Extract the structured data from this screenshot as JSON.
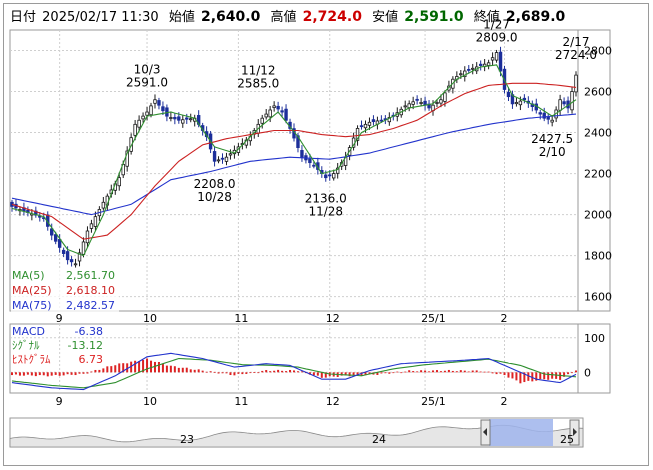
{
  "header": {
    "date_label": "日付",
    "date_value": "2025/02/17 11:30",
    "open_label": "始値",
    "open_value": "2,640.0",
    "high_label": "高値",
    "high_value": "2,724.0",
    "low_label": "安値",
    "low_value": "2,591.0",
    "close_label": "終値",
    "close_value": "2,689.0"
  },
  "colors": {
    "up": "#1a1a1a",
    "down": "#1c2f9a",
    "ma5": "#2f8f2f",
    "ma25": "#cc2222",
    "ma75": "#2233cc",
    "high_value": "#cc0000",
    "low_value": "#006600",
    "macd": "#2233cc",
    "signal": "#2f8f2f",
    "histogram": "#dd2222"
  },
  "legend": [
    {
      "label": "MA(5)",
      "value": "2,561.70",
      "color": "#2f8f2f"
    },
    {
      "label": "MA(25)",
      "value": "2,618.10",
      "color": "#cc2222"
    },
    {
      "label": "MA(75)",
      "value": "2,482.57",
      "color": "#2233cc"
    }
  ],
  "macd_legend": [
    {
      "label": "MACD",
      "value": "-6.38",
      "color": "#2233cc"
    },
    {
      "label": "ｼｸﾞﾅﾙ",
      "value": "-13.12",
      "color": "#2f8f2f"
    },
    {
      "label": "ﾋｽﾄｸﾞﾗﾑ",
      "value": "6.73",
      "color": "#dd2222"
    }
  ],
  "chart_data": [
    {
      "type": "candlestick",
      "y_ticks": [
        1600,
        1800,
        2000,
        2200,
        2400,
        2600,
        2800
      ],
      "ylim": [
        1530,
        2900
      ],
      "x_ticks": [
        "9",
        "10",
        "11",
        "12",
        "25/1",
        "2"
      ],
      "annotations": [
        {
          "date": "10/3",
          "value": "2591.0",
          "position": "above"
        },
        {
          "date": "10/28",
          "value": "2208.0",
          "position": "below"
        },
        {
          "date": "11/12",
          "value": "2585.0",
          "position": "above"
        },
        {
          "date": "11/28",
          "value": "2136.0",
          "position": "below"
        },
        {
          "date": "1/27",
          "value": "2809.0",
          "position": "above"
        },
        {
          "date": "2/10",
          "value": "2427.5",
          "position": "below"
        },
        {
          "date": "2/17",
          "value": "2724.0",
          "position": "above"
        }
      ],
      "close_anchors": [
        [
          0,
          2040
        ],
        [
          4,
          2010
        ],
        [
          8,
          1985
        ],
        [
          10,
          1900
        ],
        [
          14,
          1780
        ],
        [
          16,
          1760
        ],
        [
          19,
          1920
        ],
        [
          23,
          2060
        ],
        [
          27,
          2180
        ],
        [
          31,
          2440
        ],
        [
          34,
          2500
        ],
        [
          36,
          2560
        ],
        [
          39,
          2480
        ],
        [
          42,
          2460
        ],
        [
          46,
          2470
        ],
        [
          49,
          2380
        ],
        [
          51,
          2260
        ],
        [
          54,
          2280
        ],
        [
          57,
          2330
        ],
        [
          60,
          2380
        ],
        [
          63,
          2470
        ],
        [
          66,
          2530
        ],
        [
          68,
          2500
        ],
        [
          70,
          2420
        ],
        [
          73,
          2280
        ],
        [
          76,
          2240
        ],
        [
          79,
          2180
        ],
        [
          81,
          2200
        ],
        [
          84,
          2280
        ],
        [
          87,
          2420
        ],
        [
          90,
          2450
        ],
        [
          93,
          2460
        ],
        [
          96,
          2480
        ],
        [
          99,
          2530
        ],
        [
          102,
          2560
        ],
        [
          105,
          2520
        ],
        [
          108,
          2560
        ],
        [
          111,
          2660
        ],
        [
          114,
          2700
        ],
        [
          117,
          2720
        ],
        [
          120,
          2740
        ],
        [
          122,
          2790
        ],
        [
          124,
          2610
        ],
        [
          126,
          2540
        ],
        [
          129,
          2560
        ],
        [
          132,
          2510
        ],
        [
          134,
          2470
        ],
        [
          136,
          2460
        ],
        [
          138,
          2560
        ],
        [
          140,
          2520
        ],
        [
          142,
          2680
        ]
      ],
      "ma5": [
        [
          0,
          2030
        ],
        [
          8,
          1990
        ],
        [
          14,
          1830
        ],
        [
          18,
          1800
        ],
        [
          23,
          2000
        ],
        [
          29,
          2300
        ],
        [
          34,
          2480
        ],
        [
          40,
          2500
        ],
        [
          46,
          2470
        ],
        [
          51,
          2330
        ],
        [
          56,
          2300
        ],
        [
          62,
          2420
        ],
        [
          67,
          2500
        ],
        [
          72,
          2380
        ],
        [
          78,
          2200
        ],
        [
          82,
          2220
        ],
        [
          88,
          2400
        ],
        [
          94,
          2460
        ],
        [
          100,
          2520
        ],
        [
          106,
          2540
        ],
        [
          112,
          2660
        ],
        [
          118,
          2720
        ],
        [
          122,
          2730
        ],
        [
          126,
          2580
        ],
        [
          132,
          2530
        ],
        [
          136,
          2480
        ],
        [
          142,
          2560
        ]
      ],
      "ma25": [
        [
          0,
          2050
        ],
        [
          10,
          1990
        ],
        [
          18,
          1880
        ],
        [
          24,
          1900
        ],
        [
          30,
          2000
        ],
        [
          36,
          2140
        ],
        [
          42,
          2260
        ],
        [
          48,
          2340
        ],
        [
          54,
          2370
        ],
        [
          60,
          2390
        ],
        [
          66,
          2410
        ],
        [
          72,
          2410
        ],
        [
          78,
          2390
        ],
        [
          84,
          2380
        ],
        [
          90,
          2390
        ],
        [
          96,
          2420
        ],
        [
          102,
          2460
        ],
        [
          108,
          2530
        ],
        [
          114,
          2590
        ],
        [
          120,
          2630
        ],
        [
          126,
          2640
        ],
        [
          132,
          2640
        ],
        [
          138,
          2630
        ],
        [
          142,
          2620
        ]
      ],
      "ma75": [
        [
          0,
          2080
        ],
        [
          10,
          2040
        ],
        [
          20,
          2000
        ],
        [
          30,
          2050
        ],
        [
          40,
          2170
        ],
        [
          50,
          2210
        ],
        [
          60,
          2260
        ],
        [
          70,
          2280
        ],
        [
          80,
          2270
        ],
        [
          90,
          2300
        ],
        [
          100,
          2350
        ],
        [
          110,
          2400
        ],
        [
          120,
          2440
        ],
        [
          130,
          2470
        ],
        [
          142,
          2490
        ]
      ]
    },
    {
      "type": "macd",
      "y_ticks": [
        0,
        100
      ],
      "ylim": [
        -60,
        140
      ],
      "x_ticks": [
        "9",
        "10",
        "11",
        "12",
        "25/1",
        "2"
      ],
      "macd": [
        [
          0,
          -30
        ],
        [
          10,
          -45
        ],
        [
          18,
          -50
        ],
        [
          26,
          -10
        ],
        [
          34,
          45
        ],
        [
          40,
          55
        ],
        [
          48,
          40
        ],
        [
          56,
          15
        ],
        [
          64,
          25
        ],
        [
          70,
          20
        ],
        [
          78,
          -20
        ],
        [
          84,
          -20
        ],
        [
          90,
          5
        ],
        [
          98,
          25
        ],
        [
          106,
          30
        ],
        [
          114,
          35
        ],
        [
          120,
          40
        ],
        [
          126,
          10
        ],
        [
          132,
          -20
        ],
        [
          138,
          -30
        ],
        [
          142,
          -6
        ]
      ],
      "signal": [
        [
          0,
          -25
        ],
        [
          10,
          -38
        ],
        [
          18,
          -45
        ],
        [
          26,
          -30
        ],
        [
          34,
          10
        ],
        [
          42,
          40
        ],
        [
          50,
          35
        ],
        [
          58,
          22
        ],
        [
          66,
          20
        ],
        [
          72,
          15
        ],
        [
          80,
          -5
        ],
        [
          88,
          -10
        ],
        [
          96,
          10
        ],
        [
          104,
          22
        ],
        [
          112,
          30
        ],
        [
          120,
          38
        ],
        [
          128,
          20
        ],
        [
          134,
          -5
        ],
        [
          142,
          -13
        ]
      ],
      "histogram_anchors": [
        [
          0,
          -8
        ],
        [
          10,
          -10
        ],
        [
          18,
          -5
        ],
        [
          26,
          22
        ],
        [
          34,
          38
        ],
        [
          40,
          18
        ],
        [
          48,
          5
        ],
        [
          56,
          -8
        ],
        [
          64,
          5
        ],
        [
          72,
          5
        ],
        [
          78,
          -15
        ],
        [
          84,
          -10
        ],
        [
          92,
          -6
        ],
        [
          100,
          4
        ],
        [
          108,
          5
        ],
        [
          118,
          4
        ],
        [
          124,
          -8
        ],
        [
          128,
          -30
        ],
        [
          134,
          -20
        ],
        [
          138,
          -20
        ],
        [
          142,
          6
        ]
      ]
    },
    {
      "type": "navigator",
      "x_ticks": [
        "23",
        "24",
        "25"
      ]
    }
  ]
}
